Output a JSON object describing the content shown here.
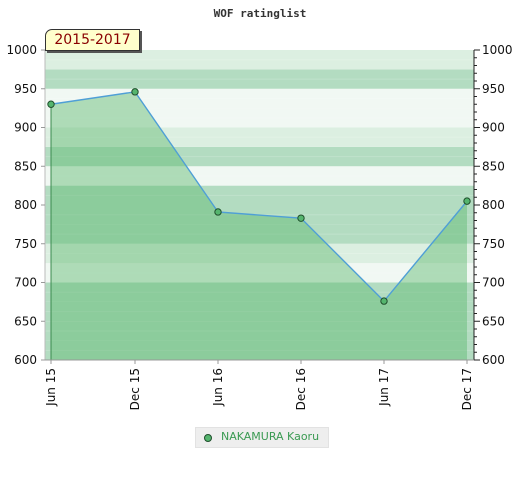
{
  "chart_data": {
    "type": "area",
    "title": "WOF ratinglist",
    "badge": "2015-2017",
    "categories": [
      "Jun 15",
      "Dec 15",
      "Jun 16",
      "Dec 16",
      "Jun 17",
      "Dec 17"
    ],
    "series": [
      {
        "name": "NAKAMURA Kaoru",
        "values": [
          930,
          946,
          791,
          783,
          676,
          805
        ]
      }
    ],
    "ylim": [
      600,
      1000
    ],
    "yticks": [
      600,
      650,
      700,
      750,
      800,
      850,
      900,
      950,
      1000
    ],
    "y_axis_left": true,
    "y_axis_right": true,
    "legend_position": "bottom-center",
    "colors": {
      "line": "#4f9fd6",
      "marker_fill": "#55b56e",
      "marker_stroke": "#1f4f2c",
      "area_fill": "#5db76f",
      "band_dark": "#b3dcc1",
      "band_light": "#dcefe1",
      "band_lightest": "#f1f8f3",
      "legend_text": "#3a9a52",
      "badge_bg": "#ffffcc",
      "badge_text": "#8a0000"
    }
  }
}
